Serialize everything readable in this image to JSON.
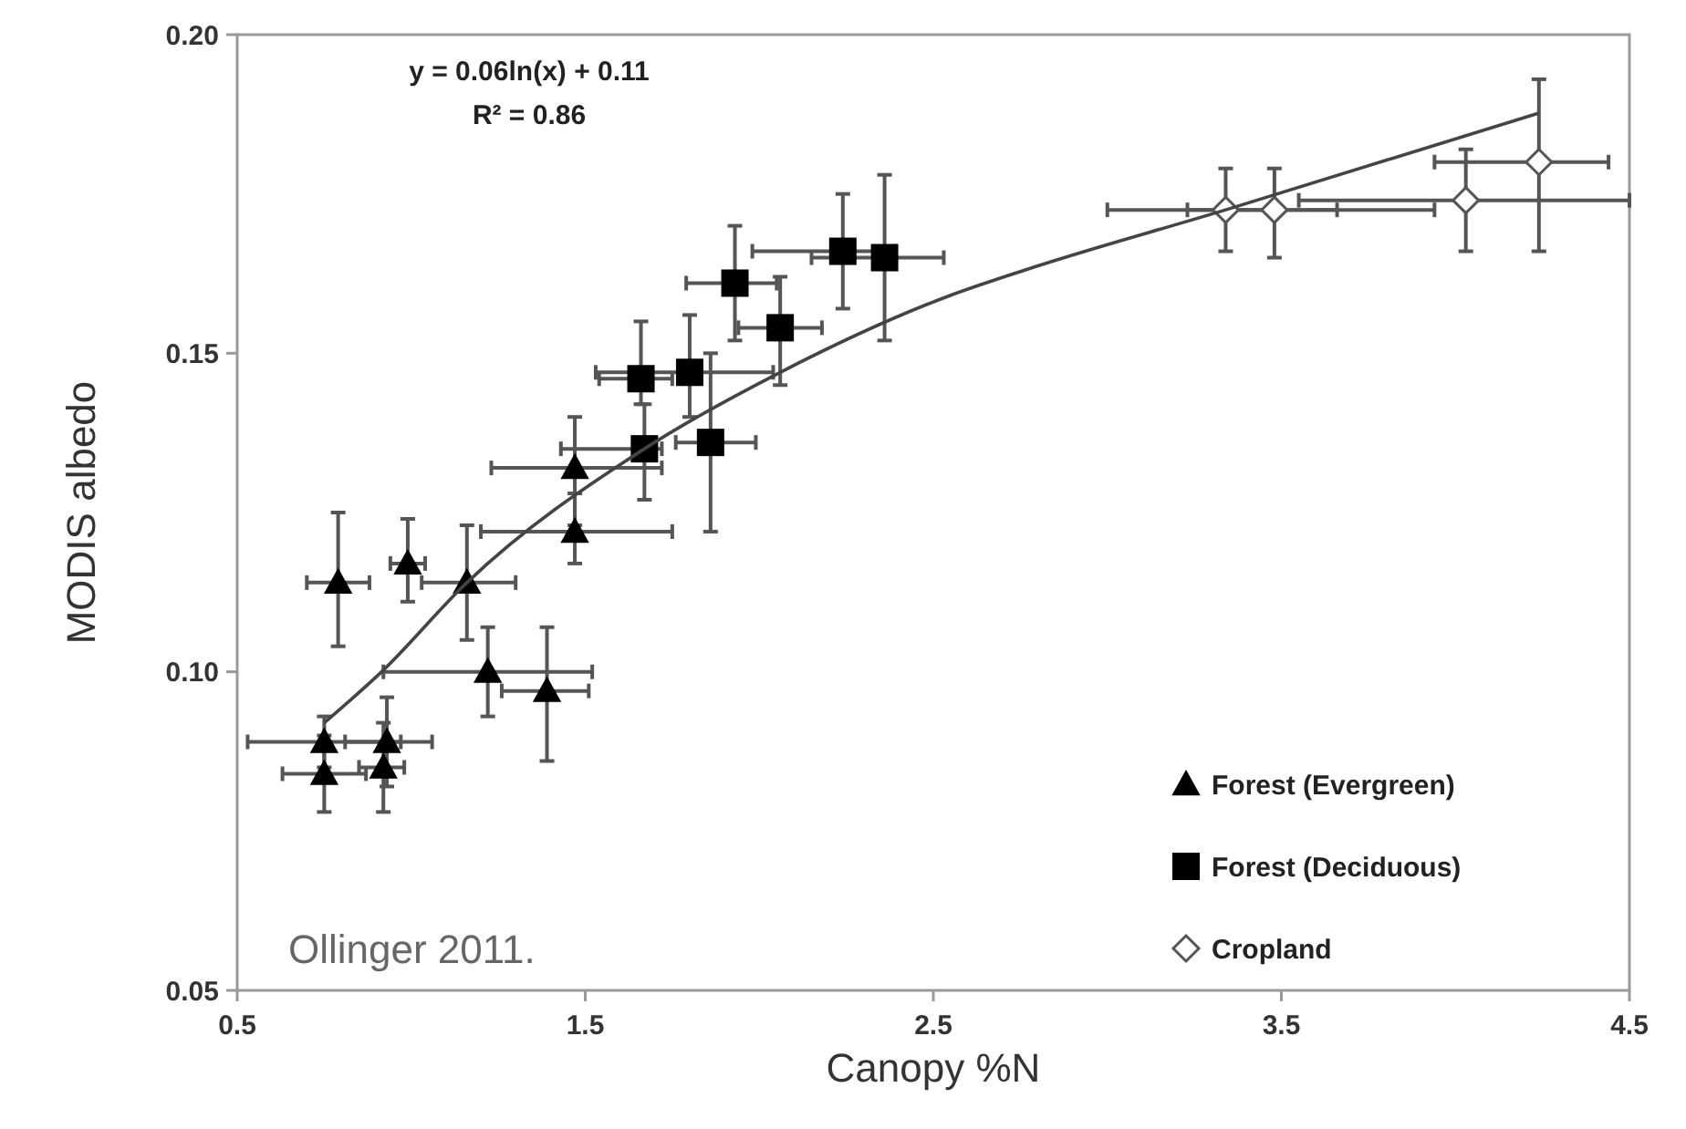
{
  "chart_data": {
    "type": "scatter",
    "xlabel": "Canopy %N",
    "ylabel": "MODIS albedo",
    "xlim": [
      0.5,
      4.5
    ],
    "ylim": [
      0.05,
      0.2
    ],
    "xticks": [
      0.5,
      1.5,
      2.5,
      3.5,
      4.5
    ],
    "yticks": [
      {
        "value": 0.05,
        "label": "0.05"
      },
      {
        "value": 0.1,
        "label": "0.10"
      },
      {
        "value": 0.15,
        "label": "0.15"
      },
      {
        "value": 0.2,
        "label": "0.20"
      }
    ],
    "grid": false,
    "legend": "bottom right",
    "annotations": [
      "y = 0.06ln(x) + 0.11",
      "R² = 0.86",
      "Ollinger 2011."
    ],
    "series": [
      {
        "name": "Forest (Evergreen)",
        "color": "#000000",
        "marker": "triangle",
        "x": [
          0.79,
          0.99,
          1.16,
          1.22,
          1.39,
          0.75,
          0.75,
          0.93,
          0.92,
          1.47,
          1.47
        ],
        "values": [
          0.114,
          0.117,
          0.114,
          0.1,
          0.097,
          0.089,
          0.084,
          0.089,
          0.085,
          0.122,
          0.132
        ],
        "errors": [
          [
            0.104,
            0.125
          ],
          [
            0.111,
            0.124
          ],
          [
            0.105,
            0.123
          ],
          [
            0.093,
            0.107
          ],
          [
            0.086,
            0.107
          ],
          [
            0.085,
            0.093
          ],
          [
            0.078,
            0.09
          ],
          [
            0.082,
            0.096
          ],
          [
            0.078,
            0.092
          ],
          [
            0.117,
            0.128
          ],
          [
            0.123,
            0.14
          ]
        ],
        "xerrors": [
          [
            0.7,
            0.88
          ],
          [
            0.94,
            1.04
          ],
          [
            1.03,
            1.3
          ],
          [
            0.92,
            1.52
          ],
          [
            1.26,
            1.51
          ],
          [
            0.53,
            0.97
          ],
          [
            0.63,
            0.87
          ],
          [
            0.81,
            1.06
          ],
          [
            0.85,
            0.98
          ],
          [
            1.2,
            1.75
          ],
          [
            1.23,
            1.72
          ]
        ]
      },
      {
        "name": "Forest (Deciduous)",
        "color": "#000000",
        "marker": "square",
        "x": [
          1.67,
          1.66,
          1.8,
          1.86,
          1.93,
          2.06,
          2.24,
          2.36
        ],
        "values": [
          0.135,
          0.146,
          0.147,
          0.136,
          0.161,
          0.154,
          0.166,
          0.165
        ],
        "errors": [
          [
            0.127,
            0.142
          ],
          [
            0.142,
            0.155
          ],
          [
            0.14,
            0.156
          ],
          [
            0.122,
            0.15
          ],
          [
            0.152,
            0.17
          ],
          [
            0.145,
            0.162
          ],
          [
            0.157,
            0.175
          ],
          [
            0.152,
            0.178
          ]
        ],
        "xerrors": [
          [
            1.43,
            1.72
          ],
          [
            1.54,
            1.75
          ],
          [
            1.53,
            2.04
          ],
          [
            1.76,
            1.99
          ],
          [
            1.79,
            2.05
          ],
          [
            1.94,
            2.18
          ],
          [
            1.98,
            2.39
          ],
          [
            2.15,
            2.53
          ]
        ]
      },
      {
        "name": "Cropland",
        "color": "#ffffff",
        "marker": "diamond",
        "x": [
          3.34,
          3.48,
          4.03,
          4.24
        ],
        "values": [
          0.1725,
          0.1725,
          0.174,
          0.18
        ],
        "errors": [
          [
            0.166,
            0.179
          ],
          [
            0.165,
            0.179
          ],
          [
            0.166,
            0.182
          ],
          [
            0.166,
            0.193
          ]
        ],
        "xerrors": [
          [
            3.0,
            3.66
          ],
          [
            3.23,
            3.94
          ],
          [
            3.55,
            4.5
          ],
          [
            3.94,
            4.44
          ]
        ]
      },
      {
        "type": "line",
        "color": "#444444",
        "marker": "none",
        "line_style": "solid",
        "x": [
          0.75,
          0.915,
          1.16,
          1.67,
          2.06,
          2.545,
          2.76,
          3.34,
          4.24
        ],
        "values": [
          0.092,
          0.1,
          0.114,
          0.135,
          0.147,
          0.159,
          0.163,
          0.1725,
          0.1877
        ]
      }
    ]
  }
}
